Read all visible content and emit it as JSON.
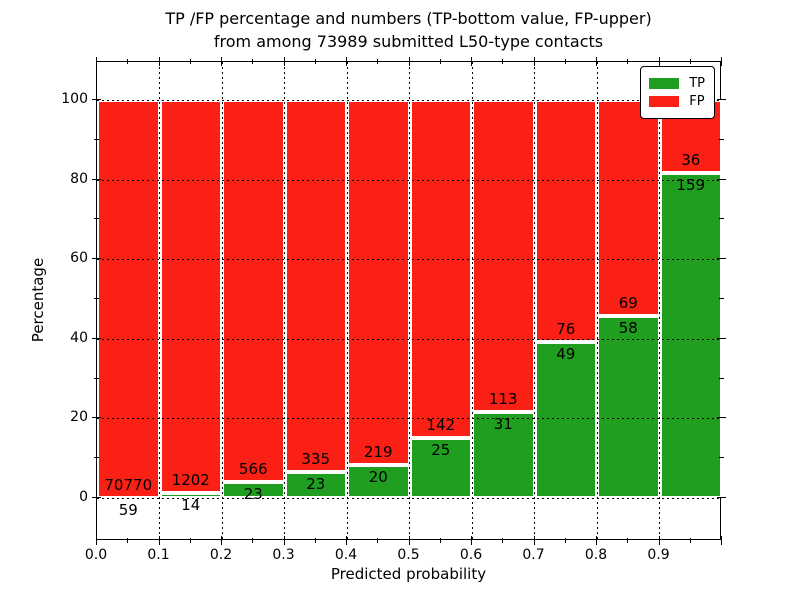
{
  "figure": {
    "title_line1": "TP /FP percentage and numbers (TP-bottom value, FP-upper)",
    "title_line2": "from among 73989 submitted L50-type contacts"
  },
  "chart_data": {
    "type": "bar",
    "stacked": true,
    "normalized_to": 100,
    "title": "TP /FP percentage and numbers (TP-bottom value, FP-upper)\nfrom among 73989 submitted L50-type contacts",
    "xlabel": "Predicted probability",
    "ylabel": "Percentage",
    "total_submitted": 73989,
    "bin_starts": [
      0.0,
      0.1,
      0.2,
      0.3,
      0.4,
      0.5,
      0.6,
      0.7,
      0.8,
      0.9
    ],
    "bin_width": 0.1,
    "x_tick_labels": [
      "0.0",
      "0.1",
      "0.2",
      "0.3",
      "0.4",
      "0.5",
      "0.6",
      "0.7",
      "0.8",
      "0.9"
    ],
    "y_ticks": [
      0,
      20,
      40,
      60,
      80,
      100
    ],
    "y_tick_labels": [
      "0",
      "20",
      "40",
      "60",
      "80",
      "100"
    ],
    "xlim": [
      0.0,
      1.0
    ],
    "ylim": [
      -10.8,
      109.5
    ],
    "grid": "dotted black, vertical every 0.1, horizontal every 20, drawn above bars",
    "series": [
      {
        "name": "TP",
        "color": "#1f9e1f",
        "counts": [
          59,
          14,
          23,
          23,
          20,
          25,
          31,
          49,
          58,
          159
        ]
      },
      {
        "name": "FP",
        "color": "#fb2015",
        "counts": [
          70770,
          1202,
          566,
          335,
          219,
          142,
          113,
          76,
          69,
          36
        ]
      }
    ],
    "tp_percent": [
      0.08,
      1.15,
      3.9,
      6.42,
      8.37,
      14.97,
      21.53,
      39.2,
      45.67,
      81.54
    ],
    "legend": {
      "position": "upper right",
      "entries": [
        "TP",
        "FP"
      ]
    }
  }
}
